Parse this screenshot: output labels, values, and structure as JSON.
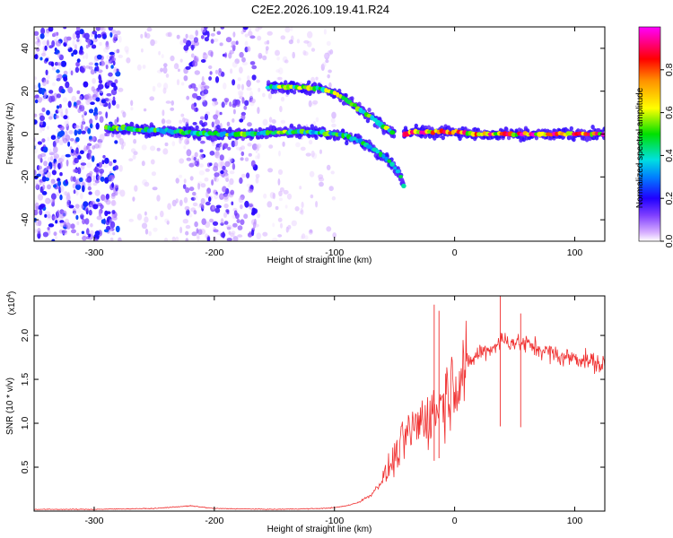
{
  "title": "C2E2.2026.109.19.41.R24",
  "chart_data": [
    {
      "type": "heatmap",
      "name": "spectrogram",
      "xlabel": "Height of straight line (km)",
      "ylabel": "Frequency (Hz)",
      "xlim": [
        -350,
        125
      ],
      "ylim": [
        -50,
        50
      ],
      "x_ticks": [
        -300,
        -200,
        -100,
        0,
        100
      ],
      "y_ticks": [
        -40,
        -20,
        0,
        20,
        40
      ],
      "colorbar": {
        "label": "Normalized spectral amplitude",
        "range": [
          0,
          1
        ],
        "ticks": [
          0.0,
          0.2,
          0.4,
          0.6,
          0.8
        ],
        "tick_labels": [
          "0.0",
          "0.2",
          "0.4",
          "0.6",
          "0.8"
        ],
        "colors": [
          "#ffffff",
          "#a040ff",
          "#3000ff",
          "#0090ff",
          "#00e0e0",
          "#00e000",
          "#ffff00",
          "#ff9000",
          "#ff0000",
          "#ff00ff"
        ]
      },
      "features": [
        {
          "kind": "noise",
          "x_range": [
            -350,
            -280
          ],
          "y_range": [
            -50,
            50
          ],
          "intensity": 0.3
        },
        {
          "kind": "noise",
          "x_range": [
            -280,
            -225
          ],
          "y_range": [
            -50,
            50
          ],
          "intensity": 0.08
        },
        {
          "kind": "noise",
          "x_range": [
            -225,
            -165
          ],
          "y_range": [
            -50,
            50
          ],
          "intensity": 0.22
        },
        {
          "kind": "noise",
          "x_range": [
            -165,
            -100
          ],
          "y_range": [
            -50,
            50
          ],
          "intensity": 0.07
        },
        {
          "kind": "band",
          "x": [
            -290,
            -260,
            -230,
            -200,
            -170,
            -140,
            -120,
            -100
          ],
          "y": [
            3,
            2,
            1,
            0,
            0,
            1,
            1,
            0
          ],
          "amp": 0.55
        },
        {
          "kind": "band",
          "x": [
            -155,
            -130,
            -110,
            -95,
            -80,
            -65,
            -55,
            -50
          ],
          "y": [
            22,
            22,
            21,
            18,
            12,
            6,
            2,
            0
          ],
          "amp": 0.6
        },
        {
          "kind": "band",
          "x": [
            -100,
            -90,
            -80,
            -70,
            -60,
            -50,
            -45,
            -42
          ],
          "y": [
            0,
            -1,
            -3,
            -6,
            -10,
            -15,
            -20,
            -25
          ],
          "amp": 0.5
        },
        {
          "kind": "band",
          "x": [
            -42,
            -35,
            -25,
            -10,
            0,
            20,
            60,
            100,
            125
          ],
          "y": [
            0,
            1,
            1,
            1,
            1,
            0,
            0,
            0,
            0
          ],
          "amp": 0.9
        }
      ]
    },
    {
      "type": "line",
      "name": "snr",
      "xlabel": "Height of straight line (km)",
      "ylabel": "SNR (10 * v/v)",
      "multiplier_label": "(x10",
      "multiplier_exp": "4",
      "multiplier_close": ")",
      "xlim": [
        -350,
        125
      ],
      "ylim": [
        0,
        2.45
      ],
      "x_ticks": [
        -300,
        -200,
        -100,
        0,
        100
      ],
      "y_ticks": [
        0.5,
        1.0,
        1.5,
        2.0
      ],
      "y_tick_labels": [
        "0.5",
        "1.0",
        "1.5",
        "2.0"
      ],
      "color": "#f03030",
      "x": [
        -350,
        -300,
        -250,
        -230,
        -220,
        -200,
        -150,
        -110,
        -100,
        -90,
        -80,
        -70,
        -60,
        -50,
        -40,
        -30,
        -20,
        -10,
        0,
        10,
        20,
        30,
        40,
        50,
        60,
        70,
        80,
        90,
        100,
        110,
        125
      ],
      "y": [
        0.02,
        0.02,
        0.03,
        0.05,
        0.06,
        0.03,
        0.02,
        0.03,
        0.04,
        0.06,
        0.1,
        0.18,
        0.35,
        0.6,
        0.85,
        1.0,
        1.1,
        1.25,
        1.5,
        1.65,
        1.8,
        1.85,
        1.95,
        1.92,
        1.9,
        1.85,
        1.8,
        1.75,
        1.75,
        1.72,
        1.65
      ],
      "peaks": [
        {
          "x": -17,
          "y": 2.35
        },
        {
          "x": -13,
          "y": 2.28
        },
        {
          "x": 38,
          "y": 2.45
        },
        {
          "x": 55,
          "y": 2.25
        }
      ]
    }
  ]
}
